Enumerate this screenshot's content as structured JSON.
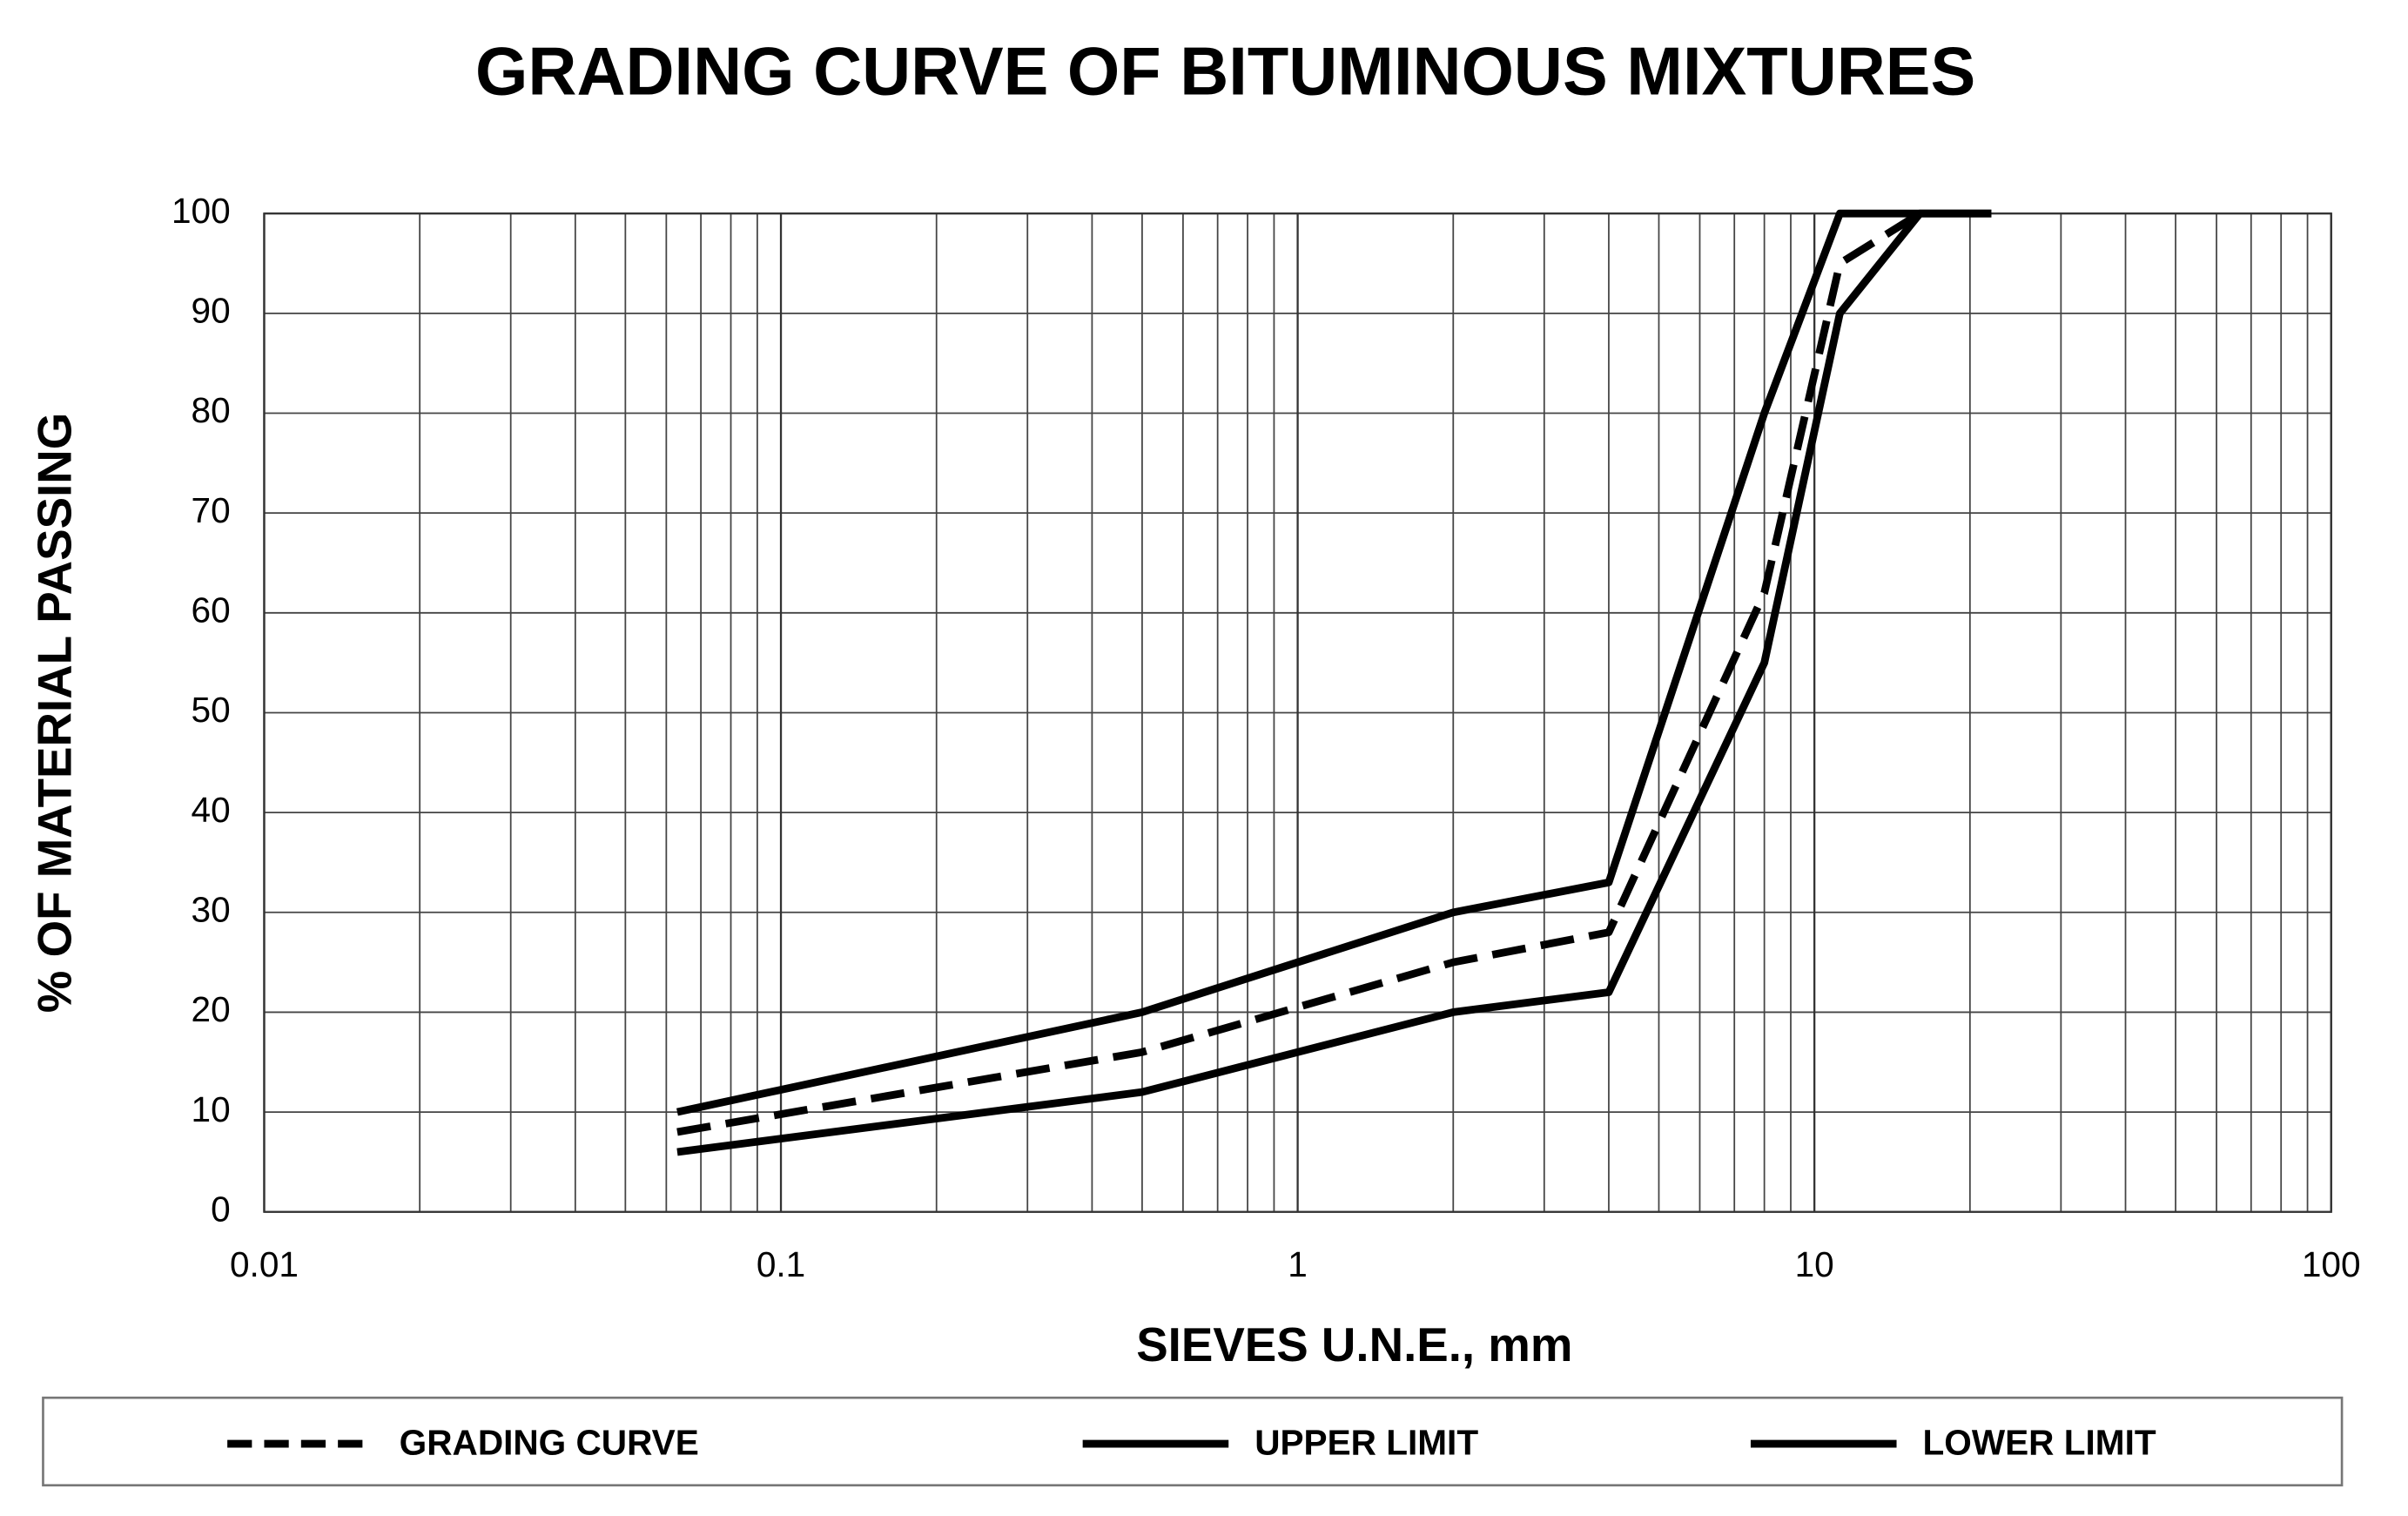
{
  "chart_data": {
    "type": "line",
    "title": "GRADING CURVE OF BITUMINOUS MIXTURES",
    "x_label": "SIEVES U.N.E., mm",
    "y_label": "% OF MATERIAL PASSING",
    "x": [
      0.063,
      0.5,
      2,
      4,
      8,
      11.2,
      16,
      22
    ],
    "series": [
      {
        "name": "GRADING CURVE",
        "color": "#000000",
        "line_style": "dashed",
        "values": [
          8,
          16,
          25,
          28,
          62,
          95,
          100,
          null
        ]
      },
      {
        "name": "UPPER LIMIT",
        "color": "#000000",
        "line_style": "solid",
        "values": [
          10,
          20,
          30,
          33,
          80,
          100,
          100,
          100
        ]
      },
      {
        "name": "LOWER LIMIT",
        "color": "#000000",
        "line_style": "solid",
        "values": [
          6,
          12,
          20,
          22,
          55,
          90,
          100,
          100
        ]
      }
    ],
    "x_log": true,
    "xlim": [
      0.01,
      100
    ],
    "xticks": [
      0.01,
      0.1,
      1,
      10,
      100
    ],
    "ylim": [
      0,
      100
    ],
    "yticks": [
      0,
      10,
      20,
      30,
      40,
      50,
      60,
      70,
      80,
      90,
      100
    ],
    "grid": true,
    "legend": "bottom"
  }
}
